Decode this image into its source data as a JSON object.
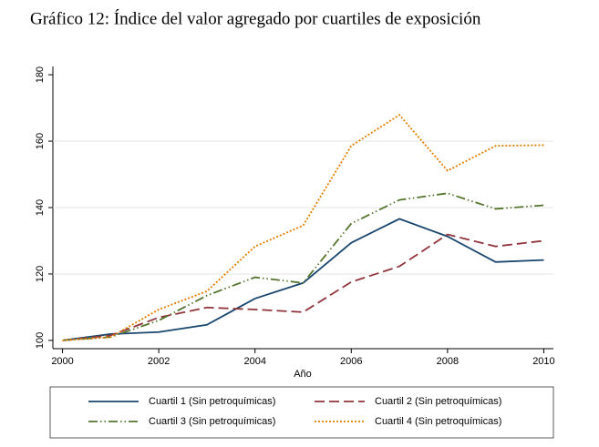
{
  "chart_data": {
    "type": "line",
    "title": "Gráfico 12: Índice del valor agregado por cuartiles de exposición",
    "x_label": "Año",
    "x": [
      2000,
      2001,
      2002,
      2003,
      2004,
      2005,
      2006,
      2007,
      2008,
      2009,
      2010
    ],
    "xlim": [
      1999.8,
      2010.2
    ],
    "xticks": [
      2000,
      2002,
      2004,
      2006,
      2008,
      2010
    ],
    "ylim": [
      97.5,
      182.5
    ],
    "yticks": [
      100,
      120,
      140,
      160,
      180
    ],
    "grid": true,
    "series": [
      {
        "name": "Cuartil 1 (Sin petroquímicas)",
        "color": "#1a476f",
        "dash": "none",
        "values": [
          100,
          101.9,
          102.5,
          104.7,
          112.6,
          117.3,
          129.4,
          136.6,
          131.3,
          123.6,
          124.2
        ]
      },
      {
        "name": "Cuartil 2 (Sin petroquímicas)",
        "color": "#90353b",
        "dash": "11,5",
        "values": [
          100,
          101.5,
          106.9,
          109.9,
          109.3,
          108.5,
          117.6,
          122.3,
          131.9,
          128.3,
          130
        ]
      },
      {
        "name": "Cuartil 3 (Sin petroquímicas)",
        "color": "#55752f",
        "dash": "10,3,1.5,3,1.5,3",
        "values": [
          100,
          101,
          106,
          113.5,
          119,
          117.3,
          135.2,
          142.3,
          144.3,
          139.6,
          140.7
        ]
      },
      {
        "name": "Cuartil 4 (Sin petroquímicas)",
        "color": "#e37e00",
        "dash": "2,2",
        "values": [
          100,
          101,
          109.3,
          114.8,
          128.3,
          134.6,
          158.6,
          167.9,
          151.1,
          158.6,
          158.8
        ]
      }
    ]
  }
}
